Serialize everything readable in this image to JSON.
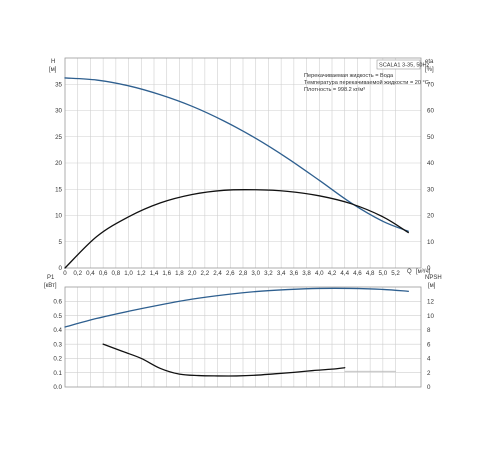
{
  "chart_data": [
    {
      "type": "line",
      "panel": "top",
      "title": "",
      "info_box": {
        "model": "SCALA1 3-35, 50Hz",
        "lines": [
          "Перекачиваемая жидкость = Вода",
          "Температура перекачиваемой жидкости = 20 °C",
          "Плотность = 998.2 кг/м³"
        ]
      },
      "xlabel_top": "Q",
      "xunit": "[м³/ч]",
      "ylabel_left": "H",
      "yunit_left": "[м]",
      "ylabel_right": "eta",
      "yunit_right": "[%]",
      "xlim": [
        0,
        5.6
      ],
      "ylim_left": [
        0,
        40
      ],
      "ylim_right": [
        0,
        80
      ],
      "x_ticks": [
        "0",
        "0,2",
        "0,4",
        "0,6",
        "0,8",
        "1,0",
        "1,2",
        "1,4",
        "1,6",
        "1,8",
        "2,0",
        "2,2",
        "2,4",
        "2,6",
        "2,8",
        "3,0",
        "3,2",
        "3,4",
        "3,6",
        "3,8",
        "4,0",
        "4,2",
        "4,4",
        "4,6",
        "4,8",
        "5,0",
        "5,2"
      ],
      "y_ticks_left": [
        "0",
        "5",
        "10",
        "15",
        "20",
        "25",
        "30",
        "35"
      ],
      "y_ticks_right": [
        "0",
        "10",
        "20",
        "30",
        "40",
        "50",
        "60",
        "70"
      ],
      "series": [
        {
          "axis": "left",
          "color": "#2e5f8f",
          "x": [
            0,
            0.5,
            1.0,
            1.5,
            2.0,
            2.5,
            3.0,
            3.5,
            4.0,
            4.5,
            5.0,
            5.4
          ],
          "values": [
            36.2,
            35.8,
            34.7,
            33.0,
            30.8,
            28.0,
            24.7,
            20.9,
            16.7,
            12.4,
            8.9,
            7.0
          ]
        },
        {
          "axis": "right",
          "color": "#111111",
          "x": [
            0,
            0.5,
            1.0,
            1.5,
            2.0,
            2.5,
            3.0,
            3.5,
            4.0,
            4.5,
            5.0,
            5.4
          ],
          "values": [
            0,
            12,
            19.5,
            24.8,
            28.0,
            29.6,
            29.8,
            29.2,
            27.5,
            24.5,
            19.5,
            13.5
          ]
        }
      ]
    },
    {
      "type": "line",
      "panel": "bottom",
      "title": "",
      "ylabel_left": "P1",
      "yunit_left": "[кВт]",
      "ylabel_right": "NPSH",
      "yunit_right": "[м]",
      "xlim": [
        0,
        5.6
      ],
      "ylim_left": [
        0,
        0.7
      ],
      "ylim_right": [
        0,
        14
      ],
      "y_ticks_left": [
        "0.0",
        "0.1",
        "0.2",
        "0.3",
        "0.4",
        "0.5",
        "0.6"
      ],
      "y_ticks_right": [
        "0",
        "2",
        "4",
        "6",
        "8",
        "10",
        "12"
      ],
      "series": [
        {
          "axis": "left",
          "color": "#2e5f8f",
          "x": [
            0,
            0.5,
            1.0,
            1.5,
            2.0,
            2.5,
            3.0,
            3.5,
            4.0,
            4.5,
            5.0,
            5.4
          ],
          "values": [
            0.42,
            0.48,
            0.53,
            0.575,
            0.615,
            0.645,
            0.668,
            0.682,
            0.69,
            0.69,
            0.683,
            0.67
          ]
        },
        {
          "axis": "right",
          "color": "#111111",
          "x": [
            0.6,
            0.9,
            1.2,
            1.5,
            1.8,
            2.1,
            2.4,
            2.7,
            3.0,
            3.3,
            3.6,
            3.9,
            4.2,
            4.4
          ],
          "values": [
            6.0,
            5.0,
            4.0,
            2.6,
            1.8,
            1.6,
            1.55,
            1.55,
            1.65,
            1.85,
            2.05,
            2.3,
            2.5,
            2.7
          ]
        },
        {
          "axis": "right",
          "color": "#bbbbbb",
          "x": [
            4.4,
            5.2
          ],
          "values": [
            2.2,
            2.2
          ]
        }
      ]
    }
  ]
}
